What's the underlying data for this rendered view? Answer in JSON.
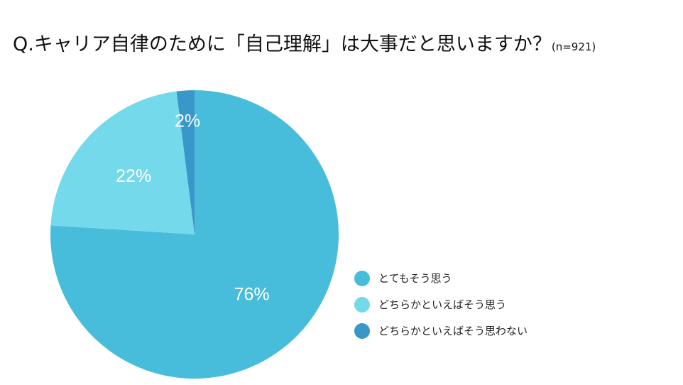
{
  "title": {
    "text": "Q.キャリア自律のために「自己理解」は大事だと思いますか？",
    "sample_size": "(n=921)"
  },
  "chart_data": {
    "type": "pie",
    "title": "Q.キャリア自律のために「自己理解」は大事だと思いますか？",
    "categories": [
      "とてもそう思う",
      "どちらかといえばそう思う",
      "どちらかといえばそう思わない"
    ],
    "values": [
      76,
      22,
      2
    ],
    "labels": [
      "76%",
      "22%",
      "2%"
    ],
    "colors": [
      "#48bddb",
      "#74d9ea",
      "#3a97c9"
    ],
    "legend_position": "right"
  }
}
